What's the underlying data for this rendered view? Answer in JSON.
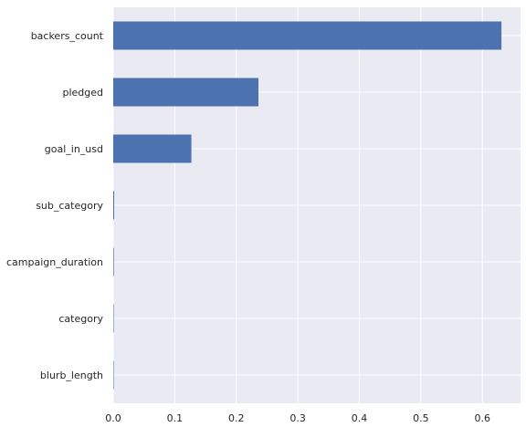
{
  "chart_data": {
    "type": "bar",
    "orientation": "horizontal",
    "categories": [
      "backers_count",
      "pledged",
      "goal_in_usd",
      "sub_category",
      "campaign_duration",
      "category",
      "blurb_length"
    ],
    "values": [
      0.631,
      0.236,
      0.127,
      0.0015,
      0.001,
      0.0005,
      0.0003
    ],
    "title": "",
    "xlabel": "",
    "ylabel": "",
    "xlim": [
      0,
      0.662
    ],
    "xticks": [
      0.0,
      0.1,
      0.2,
      0.3,
      0.4,
      0.5,
      0.6
    ],
    "xtick_labels": [
      "0.0",
      "0.1",
      "0.2",
      "0.3",
      "0.4",
      "0.5",
      "0.6"
    ],
    "grid": true,
    "legend": "none",
    "colors": {
      "bar": "#4c72b0",
      "plot_background": "#eaeaf2",
      "grid": "#ffffff"
    }
  }
}
